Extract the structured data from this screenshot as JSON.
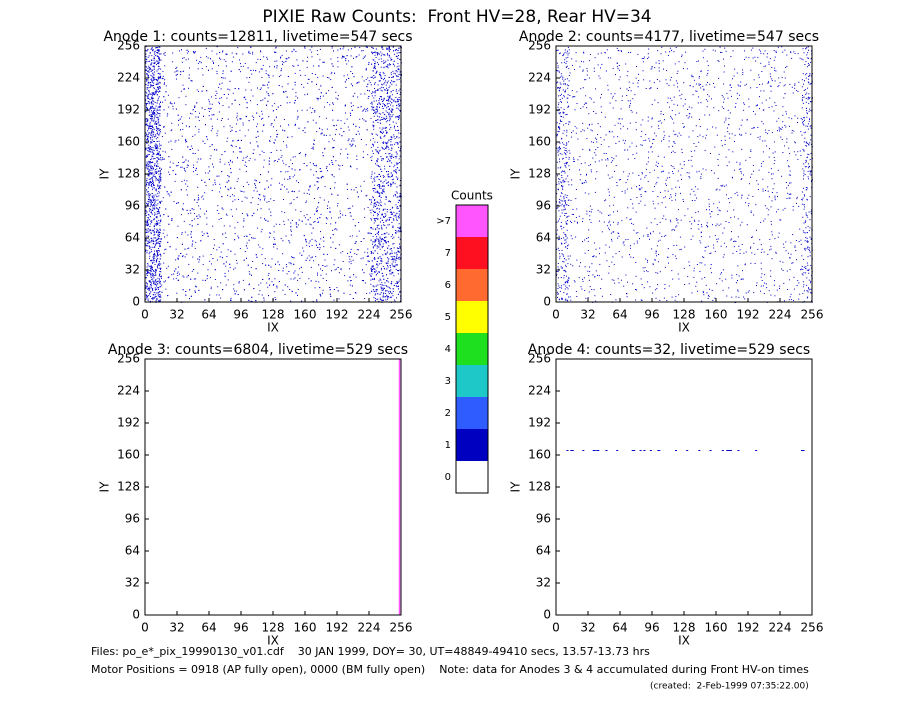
{
  "page_title": "PIXIE Raw Counts:  Front HV=28, Rear HV=34",
  "chart_data": [
    {
      "type": "heatmap",
      "title": "Anode 1: counts=12811, livetime=547 secs",
      "xlabel": "IX",
      "ylabel": "IY",
      "xlim": [
        0,
        256
      ],
      "ylim": [
        0,
        256
      ],
      "xticks": [
        0,
        32,
        64,
        96,
        128,
        160,
        192,
        224,
        256
      ],
      "yticks": [
        0,
        32,
        64,
        96,
        128,
        160,
        192,
        224,
        256
      ]
    },
    {
      "type": "heatmap",
      "title": "Anode 2: counts=4177, livetime=547 secs",
      "xlabel": "IX",
      "ylabel": "IY",
      "xlim": [
        0,
        256
      ],
      "ylim": [
        0,
        256
      ],
      "xticks": [
        0,
        32,
        64,
        96,
        128,
        160,
        192,
        224,
        256
      ],
      "yticks": [
        0,
        32,
        64,
        96,
        128,
        160,
        192,
        224,
        256
      ]
    },
    {
      "type": "heatmap",
      "title": "Anode 3: counts=6804, livetime=529 secs",
      "xlabel": "IX",
      "ylabel": "IY",
      "xlim": [
        0,
        256
      ],
      "ylim": [
        0,
        256
      ],
      "xticks": [
        0,
        32,
        64,
        96,
        128,
        160,
        192,
        224,
        256
      ],
      "yticks": [
        0,
        32,
        64,
        96,
        128,
        160,
        192,
        224,
        256
      ]
    },
    {
      "type": "heatmap",
      "title": "Anode 4: counts=32, livetime=529 secs",
      "xlabel": "IX",
      "ylabel": "IY",
      "xlim": [
        0,
        256
      ],
      "ylim": [
        0,
        256
      ],
      "xticks": [
        0,
        32,
        64,
        96,
        128,
        160,
        192,
        224,
        256
      ],
      "yticks": [
        0,
        32,
        64,
        96,
        128,
        160,
        192,
        224,
        256
      ]
    }
  ],
  "colorbar": {
    "title": "Counts",
    "labels": [
      "0",
      "1",
      "2",
      "3",
      "4",
      "5",
      "6",
      "7",
      ">7"
    ],
    "colors": [
      "#ffffff",
      "#0000c0",
      "#2f5cff",
      "#1ec8c8",
      "#1ee01e",
      "#ffff00",
      "#ff6a30",
      "#ff1020",
      "#ff55ff"
    ]
  },
  "footer": {
    "files": "Files: po_e*_pix_19990130_v01.cdf    30 JAN 1999, DOY= 30, UT=48849-49410 secs, 13.57-13.73 hrs",
    "motor": "Motor Positions = 0918 (AP fully open), 0000 (BM fully open)    Note: data for Anodes 3 & 4 accumulated during Front HV-on times",
    "created": "(created:  2-Feb-1999 07:35:22.00)"
  }
}
